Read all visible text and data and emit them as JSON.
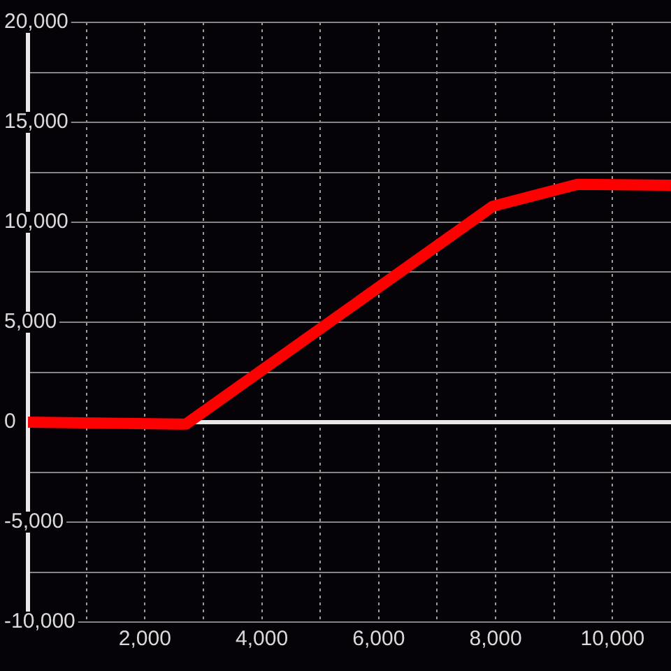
{
  "chart_data": {
    "type": "line",
    "x": [
      0,
      2700,
      7950,
      9400,
      11000
    ],
    "values": [
      0,
      -100,
      10800,
      11900,
      11850
    ],
    "color": "#ff0000",
    "marker": "none",
    "xlim": [
      0,
      11000
    ],
    "ylim": [
      -10000,
      20000
    ],
    "xticks": [
      {
        "value": 1000,
        "label": null
      },
      {
        "value": 2000,
        "label": "2,000"
      },
      {
        "value": 3000,
        "label": null
      },
      {
        "value": 4000,
        "label": "4,000"
      },
      {
        "value": 5000,
        "label": null
      },
      {
        "value": 6000,
        "label": "6,000"
      },
      {
        "value": 7000,
        "label": null
      },
      {
        "value": 8000,
        "label": "8,000"
      },
      {
        "value": 9000,
        "label": null
      },
      {
        "value": 10000,
        "label": "10,000"
      }
    ],
    "yticks": [
      {
        "value": -10000,
        "label": "-10,000"
      },
      {
        "value": -7500,
        "label": null
      },
      {
        "value": -5000,
        "label": "-5,000"
      },
      {
        "value": -2500,
        "label": null
      },
      0,
      {
        "value": 2500,
        "label": null
      },
      {
        "value": 5000,
        "label": "5,000"
      },
      {
        "value": 7500,
        "label": null
      },
      {
        "value": 10000,
        "label": "10,000"
      },
      {
        "value": 12500,
        "label": null
      },
      {
        "value": 15000,
        "label": "15,000"
      },
      {
        "value": 17500,
        "label": null
      },
      {
        "value": 20000,
        "label": "20,000"
      }
    ],
    "grid": true,
    "ref_lines": [
      {
        "axis": "y",
        "value": 0,
        "color": "#e8e8e8"
      }
    ]
  }
}
